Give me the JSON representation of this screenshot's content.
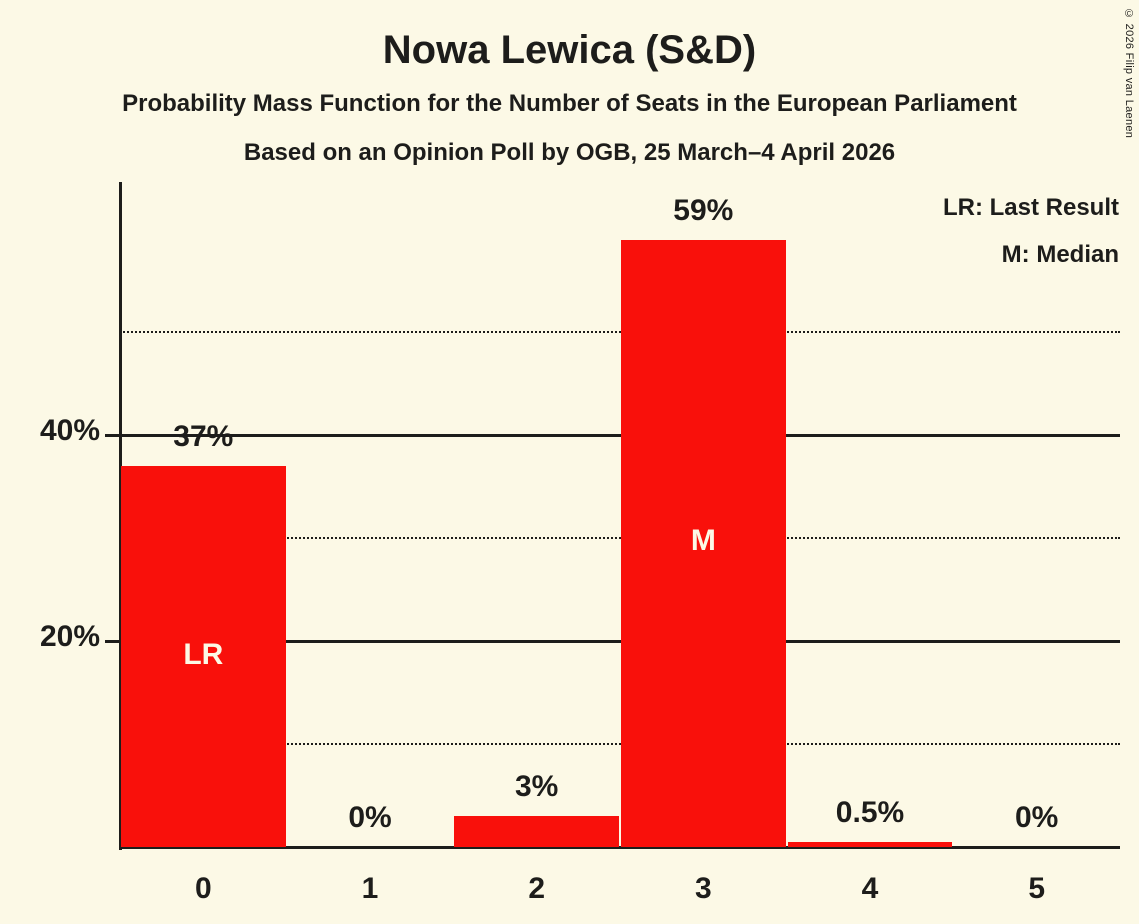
{
  "title": "Nowa Lewica (S&D)",
  "subtitle1": "Probability Mass Function for the Number of Seats in the European Parliament",
  "subtitle2": "Based on an Opinion Poll by OGB, 25 March–4 April 2026",
  "copyright": "© 2026 Filip van Laenen",
  "colors": {
    "background": "#FCF9E6",
    "bar": "#F9100B",
    "text": "#1D1D1B",
    "bar_annotation_text": "#FCF9E6"
  },
  "chart_data": {
    "type": "bar",
    "title": "Nowa Lewica (S&D)",
    "categories": [
      "0",
      "1",
      "2",
      "3",
      "4",
      "5"
    ],
    "values": [
      37,
      0,
      3,
      59,
      0.5,
      0
    ],
    "bar_labels": [
      "37%",
      "0%",
      "3%",
      "59%",
      "0.5%",
      "0%"
    ],
    "annotations": [
      {
        "index": 0,
        "text": "LR",
        "meaning": "Last Result"
      },
      {
        "index": 3,
        "text": "M",
        "meaning": "Median"
      }
    ],
    "legend": {
      "lr": "LR: Last Result",
      "m": "M: Median"
    },
    "legend_position": "top-right",
    "yticks": [
      {
        "label": "40%",
        "value": 40
      },
      {
        "label": "20%",
        "value": 20
      }
    ],
    "solid_gridlines": [
      20,
      40
    ],
    "dotted_gridlines": [
      10,
      30,
      50
    ],
    "ylim": [
      0,
      64.5
    ],
    "grid": "horizontal"
  }
}
